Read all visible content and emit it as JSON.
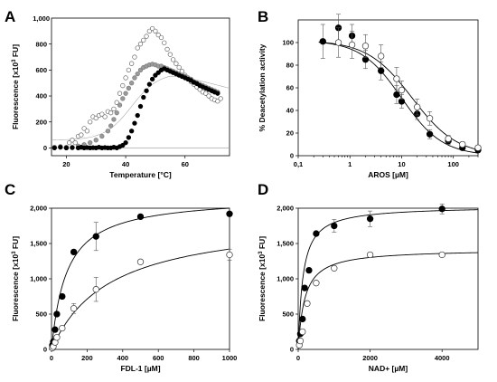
{
  "chart_data": [
    {
      "panel": "A",
      "type": "scatter",
      "xlabel": "Temperature [°C]",
      "ylabel_main": "Fluorescence [x10",
      "ylabel_sup": "3",
      "ylabel_tail": " FU]",
      "xlim": [
        15,
        75
      ],
      "ylim": [
        -60,
        1000
      ],
      "xticks": [
        20,
        40,
        60
      ],
      "yticks": [
        0,
        200,
        400,
        600,
        800
      ],
      "ytick_labels": [
        "0",
        "200",
        "400",
        "600",
        "800"
      ],
      "top_label": "1,000",
      "series": [
        {
          "style": "open",
          "points": [
            [
              16,
              5
            ],
            [
              18,
              10
            ],
            [
              20,
              5
            ],
            [
              21,
              40
            ],
            [
              22,
              60
            ],
            [
              23,
              40
            ],
            [
              24,
              90
            ],
            [
              25,
              100
            ],
            [
              26,
              150
            ],
            [
              27,
              130
            ],
            [
              28,
              200
            ],
            [
              29,
              240
            ],
            [
              30,
              230
            ],
            [
              31,
              250
            ],
            [
              32,
              260
            ],
            [
              33,
              240
            ],
            [
              34,
              280
            ],
            [
              35,
              270
            ],
            [
              36,
              300
            ],
            [
              37,
              350
            ],
            [
              38,
              420
            ],
            [
              39,
              480
            ],
            [
              40,
              540
            ],
            [
              41,
              600
            ],
            [
              42,
              650
            ],
            [
              43,
              700
            ],
            [
              44,
              770
            ],
            [
              45,
              800
            ],
            [
              46,
              830
            ],
            [
              47,
              860
            ],
            [
              48,
              900
            ],
            [
              49,
              920
            ],
            [
              50,
              900
            ],
            [
              51,
              870
            ],
            [
              52,
              850
            ],
            [
              53,
              810
            ],
            [
              54,
              760
            ],
            [
              55,
              720
            ],
            [
              56,
              680
            ],
            [
              57,
              650
            ],
            [
              58,
              620
            ],
            [
              59,
              590
            ],
            [
              60,
              560
            ],
            [
              61,
              530
            ],
            [
              62,
              510
            ],
            [
              63,
              490
            ],
            [
              64,
              470
            ],
            [
              65,
              450
            ],
            [
              66,
              430
            ],
            [
              67,
              420
            ],
            [
              68,
              400
            ],
            [
              69,
              380
            ],
            [
              70,
              370
            ],
            [
              71,
              360
            ],
            [
              72,
              380
            ]
          ]
        },
        {
          "style": "gray",
          "points": [
            [
              20,
              0
            ],
            [
              22,
              5
            ],
            [
              24,
              15
            ],
            [
              26,
              25
            ],
            [
              28,
              40
            ],
            [
              30,
              60
            ],
            [
              32,
              90
            ],
            [
              34,
              130
            ],
            [
              35,
              170
            ],
            [
              36,
              220
            ],
            [
              37,
              270
            ],
            [
              38,
              330
            ],
            [
              39,
              380
            ],
            [
              40,
              420
            ],
            [
              41,
              460
            ],
            [
              42,
              500
            ],
            [
              43,
              540
            ],
            [
              44,
              570
            ],
            [
              45,
              600
            ],
            [
              46,
              620
            ],
            [
              47,
              630
            ],
            [
              48,
              640
            ],
            [
              49,
              645
            ],
            [
              50,
              640
            ],
            [
              51,
              630
            ],
            [
              52,
              630
            ],
            [
              53,
              620
            ],
            [
              54,
              610
            ],
            [
              55,
              600
            ],
            [
              56,
              590
            ],
            [
              57,
              580
            ],
            [
              58,
              570
            ],
            [
              59,
              560
            ],
            [
              60,
              550
            ],
            [
              61,
              540
            ],
            [
              62,
              530
            ],
            [
              63,
              510
            ],
            [
              64,
              500
            ],
            [
              65,
              490
            ],
            [
              66,
              480
            ],
            [
              67,
              470
            ],
            [
              68,
              460
            ],
            [
              69,
              450
            ],
            [
              70,
              440
            ],
            [
              71,
              430
            ]
          ]
        },
        {
          "style": "filled",
          "points": [
            [
              16,
              0
            ],
            [
              18,
              5
            ],
            [
              20,
              0
            ],
            [
              22,
              2
            ],
            [
              24,
              0
            ],
            [
              25,
              5
            ],
            [
              26,
              0
            ],
            [
              27,
              3
            ],
            [
              28,
              0
            ],
            [
              29,
              2
            ],
            [
              30,
              0
            ],
            [
              31,
              5
            ],
            [
              32,
              0
            ],
            [
              33,
              3
            ],
            [
              34,
              0
            ],
            [
              35,
              0
            ],
            [
              36,
              5
            ],
            [
              37,
              0
            ],
            [
              38,
              10
            ],
            [
              39,
              20
            ],
            [
              40,
              40
            ],
            [
              41,
              80
            ],
            [
              42,
              130
            ],
            [
              43,
              190
            ],
            [
              44,
              250
            ],
            [
              45,
              320
            ],
            [
              46,
              390
            ],
            [
              47,
              440
            ],
            [
              48,
              490
            ],
            [
              49,
              530
            ],
            [
              50,
              560
            ],
            [
              51,
              580
            ],
            [
              52,
              600
            ],
            [
              53,
              610
            ],
            [
              54,
              600
            ],
            [
              55,
              590
            ],
            [
              56,
              580
            ],
            [
              57,
              570
            ],
            [
              58,
              560
            ],
            [
              59,
              550
            ],
            [
              60,
              540
            ],
            [
              61,
              530
            ],
            [
              62,
              520
            ],
            [
              63,
              505
            ],
            [
              64,
              495
            ],
            [
              65,
              480
            ],
            [
              66,
              470
            ],
            [
              67,
              460
            ],
            [
              68,
              450
            ],
            [
              69,
              440
            ],
            [
              70,
              430
            ],
            [
              71,
              420
            ]
          ]
        }
      ]
    },
    {
      "panel": "B",
      "type": "scatter",
      "xlabel": "AROS [µM]",
      "ylabel": "% Deacetylation activity",
      "xscale": "log",
      "xlim": [
        0.1,
        300
      ],
      "ylim": [
        0,
        120
      ],
      "xticks": [
        0.1,
        1,
        10,
        100
      ],
      "xtick_labels": [
        "0,1",
        "1",
        "10",
        "100"
      ],
      "yticks": [
        0,
        20,
        40,
        60,
        80,
        100
      ],
      "ytick_labels": [
        "0",
        "20",
        "40",
        "60",
        "80",
        "100"
      ],
      "fits": [
        {
          "ic50": 10,
          "hill": 1.1,
          "top": 102
        },
        {
          "ic50": 16,
          "hill": 1.0,
          "top": 102
        }
      ],
      "series": [
        {
          "style": "filled",
          "points": [
            [
              0.3,
              101
            ],
            [
              0.6,
              113
            ],
            [
              1.1,
              106
            ],
            [
              2,
              85
            ],
            [
              4,
              75
            ],
            [
              8,
              54
            ],
            [
              10,
              48
            ],
            [
              20,
              37
            ],
            [
              35,
              19
            ],
            [
              80,
              13
            ],
            [
              150,
              7
            ],
            [
              300,
              5
            ]
          ],
          "errors": [
            15,
            12,
            10,
            8,
            8,
            8,
            6,
            5,
            4,
            3,
            2,
            2
          ]
        },
        {
          "style": "open",
          "points": [
            [
              0.6,
              100
            ],
            [
              1.1,
              98
            ],
            [
              2,
              97
            ],
            [
              4,
              88
            ],
            [
              8,
              68
            ],
            [
              10,
              58
            ],
            [
              20,
              43
            ],
            [
              35,
              33
            ],
            [
              80,
              15
            ],
            [
              150,
              10
            ],
            [
              300,
              7
            ]
          ],
          "errors": [
            13,
            12,
            10,
            10,
            10,
            8,
            7,
            6,
            3,
            2,
            2
          ]
        }
      ]
    },
    {
      "panel": "C",
      "type": "scatter",
      "xlabel": "FDL-1 [µM]",
      "ylabel_main": "Fluorescence [x10",
      "ylabel_sup": "3",
      "ylabel_tail": " FU]",
      "xlim": [
        0,
        1000
      ],
      "ylim": [
        0,
        2000
      ],
      "xticks": [
        0,
        200,
        400,
        600,
        800,
        1000
      ],
      "yticks": [
        0,
        500,
        1000,
        1500,
        2000
      ],
      "ytick_labels": [
        "0",
        "500",
        "1,000",
        "1,500",
        "2,000"
      ],
      "fits": [
        {
          "vmax": 2170,
          "km": 85
        },
        {
          "vmax": 1890,
          "km": 330
        }
      ],
      "series": [
        {
          "style": "filled",
          "points": [
            [
              5,
              60
            ],
            [
              10,
              110
            ],
            [
              20,
              280
            ],
            [
              30,
              500
            ],
            [
              60,
              750
            ],
            [
              125,
              1380
            ],
            [
              250,
              1600
            ],
            [
              500,
              1880
            ],
            [
              1000,
              1920
            ]
          ],
          "errors": [
            0,
            0,
            0,
            0,
            0,
            0,
            200,
            0,
            0
          ]
        },
        {
          "style": "open",
          "points": [
            [
              5,
              20
            ],
            [
              10,
              40
            ],
            [
              20,
              100
            ],
            [
              30,
              170
            ],
            [
              60,
              300
            ],
            [
              125,
              580
            ],
            [
              250,
              850
            ],
            [
              500,
              1240
            ],
            [
              1000,
              1340
            ]
          ],
          "errors": [
            0,
            0,
            0,
            0,
            0,
            70,
            170,
            0,
            80
          ]
        }
      ]
    },
    {
      "panel": "D",
      "type": "scatter",
      "xlabel": "NAD+ [µM]",
      "ylabel_main": "Fluorescence [x10",
      "ylabel_sup": "3",
      "ylabel_tail": " FU]",
      "xlim": [
        0,
        5000
      ],
      "ylim": [
        0,
        2000
      ],
      "xticks": [
        0,
        2000,
        4000
      ],
      "yticks": [
        0,
        500,
        1000,
        1500,
        2000
      ],
      "ytick_labels": [
        "0",
        "500",
        "1,000",
        "1,500",
        "2,000"
      ],
      "fits": [
        {
          "vmax": 2030,
          "km": 130
        },
        {
          "vmax": 1420,
          "km": 180
        }
      ],
      "series": [
        {
          "style": "filled",
          "points": [
            [
              30,
              120
            ],
            [
              60,
              220
            ],
            [
              120,
              430
            ],
            [
              180,
              870
            ],
            [
              300,
              1120
            ],
            [
              500,
              1640
            ],
            [
              1000,
              1750
            ],
            [
              2000,
              1850
            ],
            [
              4000,
              1990
            ]
          ],
          "errors": [
            0,
            0,
            0,
            0,
            0,
            0,
            90,
            110,
            70
          ]
        },
        {
          "style": "open",
          "points": [
            [
              30,
              60
            ],
            [
              60,
              120
            ],
            [
              120,
              250
            ],
            [
              250,
              650
            ],
            [
              500,
              940
            ],
            [
              1000,
              1150
            ],
            [
              2000,
              1340
            ],
            [
              4000,
              1340
            ]
          ],
          "errors": [
            0,
            0,
            0,
            0,
            0,
            0,
            0,
            0
          ]
        }
      ]
    }
  ]
}
